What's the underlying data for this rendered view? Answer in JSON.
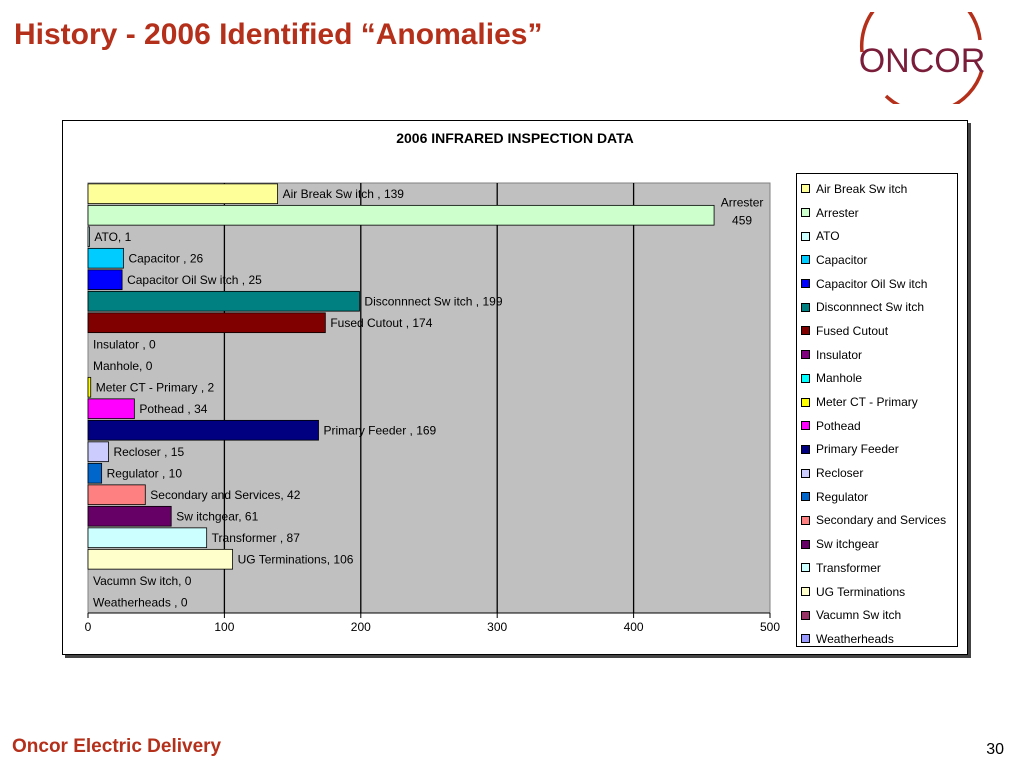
{
  "slide": {
    "title": "History - 2006 Identified “Anomalies”",
    "logo_text": "ONCOR",
    "footer": "Oncor Electric Delivery",
    "page_number": "30"
  },
  "colors": {
    "brand": "#b5301b"
  },
  "chart_data": {
    "type": "bar",
    "orientation": "horizontal",
    "title": "2006 INFRARED INSPECTION DATA",
    "xlim": [
      0,
      500
    ],
    "xticks": [
      0,
      100,
      200,
      300,
      400,
      500
    ],
    "grid": true,
    "legend_position": "right",
    "categories": [
      "Air Break Switch",
      "Arrester",
      "ATO",
      "Capacitor",
      "Capacitor Oil Switch",
      "Disconnnect Switch",
      "Fused Cutout",
      "Insulator",
      "Manhole",
      "Meter CT - Primary",
      "Pothead",
      "Primary Feeder",
      "Recloser",
      "Regulator",
      "Secondary and Services",
      "Switchgear",
      "Transformer",
      "UG Terminations",
      "Vacumn Switch",
      "Weatherheads"
    ],
    "legend_labels": [
      "Air Break Sw itch",
      "Arrester",
      "ATO",
      "Capacitor",
      "Capacitor Oil Sw itch",
      "Disconnnect Sw itch",
      "Fused Cutout",
      "Insulator",
      "Manhole",
      "Meter CT - Primary",
      "Pothead",
      "Primary Feeder",
      "Recloser",
      "Regulator",
      "Secondary and Services",
      "Sw itchgear",
      "Transformer",
      "UG Terminations",
      "Vacumn Sw itch",
      "Weatherheads"
    ],
    "values": [
      139,
      459,
      1,
      26,
      25,
      199,
      174,
      0,
      0,
      2,
      34,
      169,
      15,
      10,
      42,
      61,
      87,
      106,
      0,
      0
    ],
    "data_labels": [
      "Air Break Sw itch , 139",
      "Arrester 459",
      "ATO, 1",
      "Capacitor , 26",
      "Capacitor Oil Sw itch , 25",
      "Disconnnect Sw itch , 199",
      "Fused Cutout , 174",
      "Insulator , 0",
      "Manhole, 0",
      "Meter CT - Primary , 2",
      "Pothead , 34",
      "Primary Feeder , 169",
      "Recloser , 15",
      "Regulator , 10",
      "Secondary and Services, 42",
      "Sw itchgear, 61",
      "Transformer , 87",
      "UG Terminations, 106",
      "Vacumn Sw itch, 0",
      "Weatherheads , 0"
    ],
    "series_colors": [
      "#ffff99",
      "#ccffcc",
      "#ccffff",
      "#00ccff",
      "#0000ff",
      "#008080",
      "#800000",
      "#800080",
      "#00ffff",
      "#ffff00",
      "#ff00ff",
      "#000080",
      "#ccccff",
      "#0066cc",
      "#ff8080",
      "#660066",
      "#ccffff",
      "#ffffcc",
      "#993366",
      "#9999ff"
    ]
  }
}
